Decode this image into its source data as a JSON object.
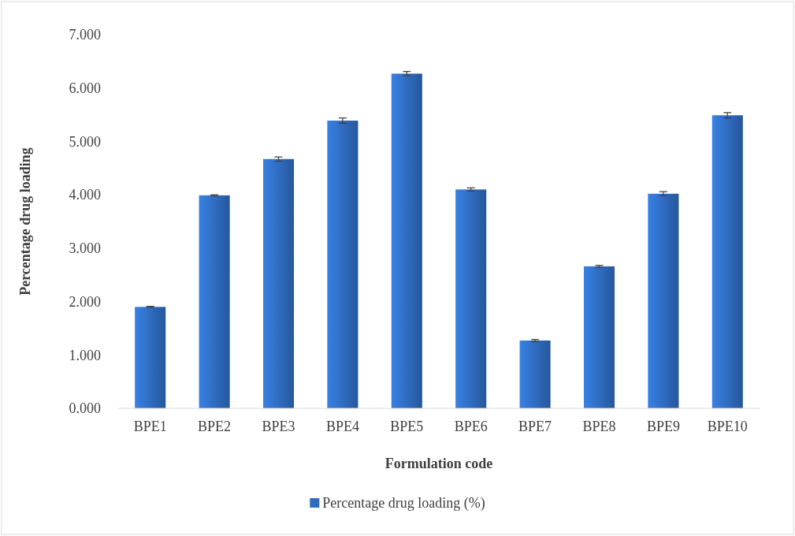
{
  "chart_data": {
    "type": "bar",
    "xlabel": "Formulation code",
    "ylabel": "Percentage drug loading",
    "categories": [
      "BPE1",
      "BPE2",
      "BPE3",
      "BPE4",
      "BPE5",
      "BPE6",
      "BPE7",
      "BPE8",
      "BPE9",
      "BPE10"
    ],
    "series": [
      {
        "name": "Percentage drug loading (%)",
        "color": "#2f6cc0",
        "values": [
          1.9,
          3.99,
          4.67,
          5.39,
          6.27,
          4.1,
          1.27,
          2.66,
          4.02,
          5.49
        ],
        "errors": [
          0.01,
          0.01,
          0.04,
          0.05,
          0.04,
          0.03,
          0.02,
          0.02,
          0.04,
          0.05
        ]
      }
    ],
    "ylim": [
      0,
      7
    ],
    "yticks": [
      {
        "value": 0,
        "label": "0.000"
      },
      {
        "value": 1,
        "label": "1.000"
      },
      {
        "value": 2,
        "label": "2.000"
      },
      {
        "value": 3,
        "label": "3.000"
      },
      {
        "value": 4,
        "label": "4.000"
      },
      {
        "value": 5,
        "label": "5.000"
      },
      {
        "value": 6,
        "label": "6.000"
      },
      {
        "value": 7,
        "label": "7.000"
      }
    ],
    "grid": false,
    "legend": "bottom"
  }
}
